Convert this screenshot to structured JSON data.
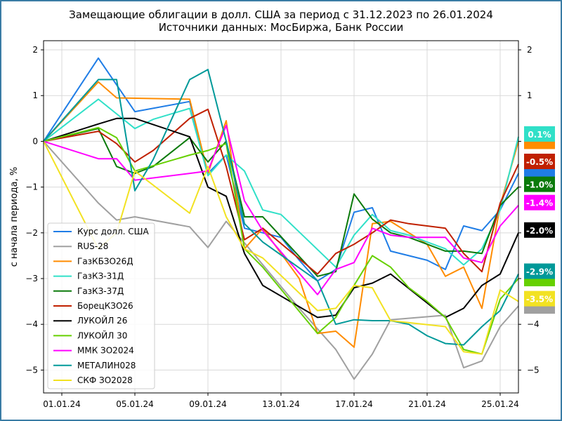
{
  "chart_data": {
    "type": "line",
    "title": "Замещающие облигации в долл. США за период с 31.12.2023 по 26.01.2024",
    "subtitle": "Источники данных: МосБиржа, Банк России",
    "ylabel": "с начала периода, %",
    "xlabel": "",
    "ylim": [
      -5.5,
      2.2
    ],
    "xlim": [
      0,
      26
    ],
    "y_ticks": [
      2,
      1,
      0,
      -1,
      -2,
      -3,
      -4,
      -5
    ],
    "y_tick_labels": [
      "2",
      "1",
      "0",
      "−1",
      "−2",
      "−3",
      "−4",
      "−5"
    ],
    "x_ticks": [
      1,
      5,
      9,
      13,
      17,
      21,
      25
    ],
    "x_tick_labels": [
      "01.01.24",
      "05.01.24",
      "09.01.24",
      "13.01.24",
      "17.01.24",
      "21.01.24",
      "25.01.24"
    ],
    "legend_position": "bottom-left",
    "series": [
      {
        "name": "Курс долл. США",
        "color": "#1f7de6",
        "x": [
          0,
          3,
          5,
          8,
          9,
          10,
          11,
          12,
          13,
          14,
          15,
          16,
          17,
          18,
          19,
          20,
          21,
          22,
          23,
          24,
          25,
          26
        ],
        "y": [
          0,
          1.82,
          0.65,
          0.87,
          -0.7,
          -0.3,
          -1.9,
          -2.0,
          -2.1,
          -2.6,
          -3.05,
          -2.8,
          -1.55,
          -1.45,
          -2.4,
          -2.5,
          -2.6,
          -2.8,
          -1.85,
          -1.95,
          -1.5,
          -0.7
        ]
      },
      {
        "name": "RUS-28",
        "color": "#a0a0a0",
        "x": [
          0,
          3,
          4,
          5,
          8,
          9,
          10,
          11,
          14,
          16,
          17,
          18,
          19,
          22,
          23,
          24,
          25,
          26
        ],
        "y": [
          0,
          -1.35,
          -1.72,
          -1.65,
          -1.87,
          -2.32,
          -1.75,
          -2.22,
          -3.65,
          -4.55,
          -5.2,
          -4.65,
          -3.9,
          -3.8,
          -4.95,
          -4.8,
          -4.05,
          -3.6
        ]
      },
      {
        "name": "ГазКБЗО26Д",
        "color": "#ff8c00",
        "x": [
          0,
          3,
          4,
          8,
          9,
          10,
          11,
          12,
          14,
          15,
          16,
          17,
          18,
          19,
          21,
          22,
          23,
          24,
          25,
          26
        ],
        "y": [
          0,
          1.3,
          0.95,
          0.92,
          -0.7,
          0.45,
          -2.35,
          -1.9,
          -3.0,
          -4.2,
          -4.15,
          -4.5,
          -1.8,
          -1.75,
          -2.25,
          -2.95,
          -2.75,
          -3.65,
          -1.4,
          0.0
        ]
      },
      {
        "name": "ГазКЗ-31Д",
        "color": "#30e0c8",
        "x": [
          0,
          3,
          5,
          6,
          8,
          9,
          10,
          11,
          12,
          13,
          16,
          17,
          18,
          19,
          20,
          21,
          22,
          23,
          24,
          25,
          26
        ],
        "y": [
          0,
          0.92,
          0.28,
          0.48,
          0.72,
          -0.75,
          -0.3,
          -0.65,
          -1.5,
          -1.6,
          -2.75,
          -2.05,
          -1.6,
          -1.95,
          -2.05,
          -2.2,
          -2.35,
          -2.7,
          -2.35,
          -1.5,
          0.1
        ]
      },
      {
        "name": "ГазКЗ-37Д",
        "color": "#0b7a0b",
        "x": [
          0,
          3,
          4,
          5,
          6,
          8,
          9,
          10,
          11,
          12,
          15,
          16,
          17,
          18,
          19,
          20,
          21,
          22,
          23,
          24,
          25,
          26
        ],
        "y": [
          0,
          0.28,
          -0.55,
          -0.7,
          -0.55,
          0.08,
          -0.45,
          0.0,
          -1.65,
          -1.65,
          -2.95,
          -2.85,
          -1.15,
          -1.7,
          -2.0,
          -2.1,
          -2.25,
          -2.4,
          -2.4,
          -2.45,
          -1.4,
          -1.0
        ]
      },
      {
        "name": "БорецКЗО26",
        "color": "#c02000",
        "x": [
          0,
          3,
          4,
          5,
          6,
          8,
          9,
          10,
          11,
          12,
          15,
          16,
          17,
          18,
          19,
          20,
          21,
          22,
          23,
          24,
          25,
          26
        ],
        "y": [
          0,
          0.22,
          -0.05,
          -0.45,
          -0.2,
          0.5,
          0.7,
          -0.55,
          -2.15,
          -1.9,
          -2.9,
          -2.45,
          -2.25,
          -2.0,
          -1.72,
          -1.8,
          -1.85,
          -1.9,
          -2.45,
          -2.85,
          -1.35,
          -0.5
        ]
      },
      {
        "name": "ЛУКОЙЛ 26",
        "color": "#000000",
        "x": [
          0,
          3,
          4,
          5,
          8,
          9,
          10,
          11,
          12,
          15,
          16,
          17,
          18,
          19,
          22,
          23,
          24,
          25,
          26
        ],
        "y": [
          0,
          0.38,
          0.5,
          0.5,
          0.1,
          -1.0,
          -1.2,
          -2.45,
          -3.15,
          -3.85,
          -3.8,
          -3.2,
          -3.1,
          -2.9,
          -3.85,
          -3.65,
          -3.15,
          -2.9,
          -2.0
        ]
      },
      {
        "name": "ЛУКОЙЛ 30",
        "color": "#66d000",
        "x": [
          0,
          3,
          4,
          5,
          8,
          9,
          10,
          11,
          12,
          15,
          16,
          17,
          18,
          19,
          20,
          21,
          22,
          23,
          24,
          25,
          26
        ],
        "y": [
          0,
          0.3,
          0.08,
          -0.65,
          -0.3,
          -0.2,
          -0.05,
          -2.35,
          -2.75,
          -4.2,
          -3.85,
          -3.15,
          -2.5,
          -2.75,
          -3.2,
          -3.5,
          -3.85,
          -4.55,
          -4.65,
          -3.45,
          -3.0
        ]
      },
      {
        "name": "ММК ЗО2024",
        "color": "#ff00ff",
        "x": [
          0,
          3,
          4,
          5,
          8,
          9,
          10,
          11,
          12,
          15,
          16,
          17,
          18,
          19,
          20,
          21,
          22,
          23,
          24,
          25,
          26
        ],
        "y": [
          0,
          -0.38,
          -0.38,
          -0.85,
          -0.7,
          -0.65,
          0.35,
          -1.3,
          -1.95,
          -3.35,
          -2.8,
          -2.65,
          -1.9,
          -2.05,
          -2.1,
          -2.1,
          -2.1,
          -2.55,
          -2.65,
          -1.85,
          -1.4
        ]
      },
      {
        "name": "МЕТАЛИН028",
        "color": "#009999",
        "x": [
          0,
          3,
          4,
          5,
          6,
          8,
          9,
          10,
          11,
          12,
          15,
          16,
          17,
          18,
          19,
          20,
          21,
          22,
          23,
          24,
          25,
          26
        ],
        "y": [
          0,
          1.35,
          1.35,
          -1.08,
          -0.4,
          1.35,
          1.57,
          0.0,
          -1.8,
          -2.2,
          -3.05,
          -4.0,
          -3.9,
          -3.92,
          -3.92,
          -4.0,
          -4.25,
          -4.42,
          -4.45,
          -4.05,
          -3.7,
          -2.9
        ]
      },
      {
        "name": "СКФ ЗО2028",
        "color": "#f2e222",
        "x": [
          0,
          3,
          4,
          5,
          8,
          9,
          10,
          11,
          12,
          15,
          16,
          17,
          18,
          19,
          22,
          23,
          24,
          25,
          26
        ],
        "y": [
          0,
          -2.35,
          -2.0,
          -0.65,
          -1.57,
          -0.55,
          -1.65,
          -2.35,
          -2.55,
          -3.7,
          -3.65,
          -3.15,
          -3.2,
          -3.92,
          -4.05,
          -4.6,
          -4.65,
          -3.25,
          -3.5
        ]
      }
    ],
    "end_badges": [
      {
        "label": "0.1%",
        "value": 0.1,
        "bg": "#30e0c8",
        "fg": "#ffffff"
      },
      {
        "label": "-0.5%",
        "value": -0.5,
        "bg": "#c02000",
        "fg": "#ffffff"
      },
      {
        "label": "-1.0%",
        "value": -1.0,
        "bg": "#0b7a0b",
        "fg": "#ffffff"
      },
      {
        "label": "-1.4%",
        "value": -1.4,
        "bg": "#ff00ff",
        "fg": "#ffffff"
      },
      {
        "label": "-2.0%",
        "value": -2.0,
        "bg": "#000000",
        "fg": "#ffffff"
      },
      {
        "label": "-2.9%",
        "value": -2.9,
        "bg": "#009999",
        "fg": "#ffffff"
      },
      {
        "label": "-3.5%",
        "value": -3.5,
        "bg": "#f2e222",
        "fg": "#ffffff"
      }
    ],
    "hidden_badges": [
      {
        "value": 0.0,
        "bg": "#ff8c00"
      },
      {
        "value": -0.7,
        "bg": "#1f7de6"
      },
      {
        "value": -3.0,
        "bg": "#66d000"
      },
      {
        "value": -3.6,
        "bg": "#a0a0a0"
      }
    ]
  }
}
